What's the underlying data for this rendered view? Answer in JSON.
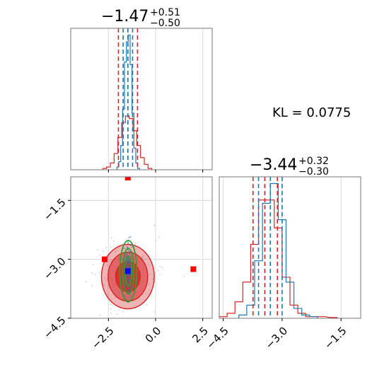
{
  "chart_data": {
    "type": "corner",
    "parameters": [
      "param_1",
      "param_2"
    ],
    "annotation": "KL = 0.0775",
    "series": [
      {
        "color": "#d62728",
        "role": "red histogram, filled density contours, quantile dashes"
      },
      {
        "color": "#1f77b4",
        "role": "blue histogram, point cloud, quantile dashes"
      },
      {
        "color": "#2ca02c",
        "role": "green contour ellipses"
      }
    ],
    "panels": [
      {
        "id": "hist_param_1",
        "type": "histogram",
        "title": {
          "main": "−1.47",
          "plus": "+0.51",
          "minus": "−0.50"
        },
        "xlim": [
          -4.5,
          3.0
        ],
        "xticks": [
          -2.5,
          0.0,
          2.5
        ],
        "red_quantiles": [
          -1.97,
          -1.47,
          -0.96
        ],
        "blue_quantiles": [
          -1.72,
          -1.47,
          -1.22
        ],
        "red_hist": {
          "x": [
            -2.7,
            -2.5,
            -2.3,
            -2.1,
            -1.9,
            -1.7,
            -1.5,
            -1.3,
            -1.1,
            -0.9,
            -0.7,
            -0.5,
            -0.3
          ],
          "y": [
            0.01,
            0.02,
            0.05,
            0.12,
            0.24,
            0.35,
            0.4,
            0.38,
            0.29,
            0.18,
            0.09,
            0.04,
            0.01
          ]
        },
        "blue_hist": {
          "x": [
            -2.0,
            -1.9,
            -1.8,
            -1.7,
            -1.6,
            -1.5,
            -1.4,
            -1.3,
            -1.2,
            -1.1,
            -1.0,
            -0.9
          ],
          "y": [
            0.02,
            0.06,
            0.18,
            0.45,
            0.8,
            0.95,
            1.0,
            0.78,
            0.42,
            0.16,
            0.05,
            0.01
          ]
        }
      },
      {
        "id": "hist_param_2",
        "type": "histogram",
        "title": {
          "main": "−3.44",
          "plus": "+0.32",
          "minus": "−0.30"
        },
        "xlim": [
          -4.6,
          -1.0
        ],
        "xticks": [
          -4.5,
          -3.0,
          -1.5
        ],
        "red_quantiles": [
          -3.74,
          -3.44,
          -3.12
        ],
        "blue_quantiles": [
          -3.6,
          -3.3,
          -3.0
        ],
        "red_hist": {
          "x": [
            -4.5,
            -4.3,
            -4.1,
            -3.9,
            -3.7,
            -3.5,
            -3.3,
            -3.1,
            -2.9,
            -2.7,
            -2.5,
            -2.3,
            -2.0,
            -1.7
          ],
          "y": [
            0.01,
            0.03,
            0.1,
            0.22,
            0.45,
            0.72,
            0.72,
            0.55,
            0.25,
            0.08,
            0.03,
            0.01,
            0.01,
            0.005
          ]
        },
        "blue_hist": {
          "x": [
            -4.0,
            -3.8,
            -3.6,
            -3.4,
            -3.2,
            -3.0,
            -2.8,
            -2.6,
            -2.4,
            -2.2
          ],
          "y": [
            0.02,
            0.08,
            0.35,
            0.7,
            0.82,
            0.6,
            0.22,
            0.06,
            0.02,
            0.01
          ]
        }
      },
      {
        "id": "scatter_2d",
        "type": "2d-density",
        "xlim": [
          -4.5,
          3.0
        ],
        "ylim": [
          -4.5,
          -0.9
        ],
        "xticks": [
          -2.5,
          0.0,
          2.5
        ],
        "yticks": [
          -1.5,
          -3.0,
          -4.5
        ],
        "red_contours": [
          {
            "level": "outer",
            "cx": -1.47,
            "cy": -3.44,
            "rx": 1.4,
            "ry": 0.82
          },
          {
            "level": "middle",
            "cx": -1.47,
            "cy": -3.44,
            "rx": 1.05,
            "ry": 0.62
          },
          {
            "level": "inner",
            "cx": -1.47,
            "cy": -3.44,
            "rx": 0.65,
            "ry": 0.38
          }
        ],
        "green_contours": [
          {
            "cx": -1.45,
            "cy": -3.3,
            "rx": 0.45,
            "ry": 0.78
          },
          {
            "cx": -1.45,
            "cy": -3.3,
            "rx": 0.3,
            "ry": 0.58
          },
          {
            "cx": -1.45,
            "cy": -3.3,
            "rx": 0.18,
            "ry": 0.38
          }
        ],
        "red_squares": [
          {
            "x": -1.47,
            "y": -0.92
          },
          {
            "x": -2.7,
            "y": -3.0
          },
          {
            "x": 2.0,
            "y": -3.25
          }
        ],
        "blue_square": {
          "x": -1.47,
          "y": -3.3
        }
      }
    ]
  }
}
